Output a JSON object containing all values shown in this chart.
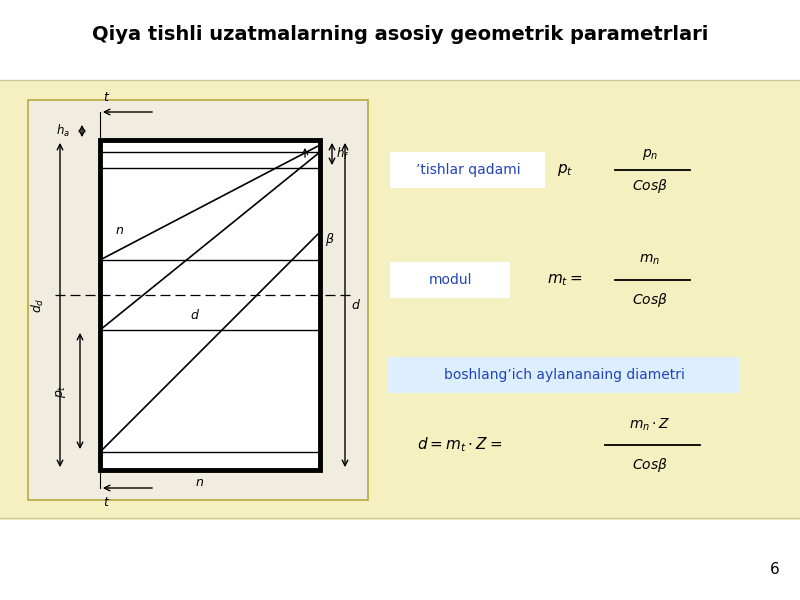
{
  "title": "Qiya tishli uzatmalarning asosiy geometrik parametrlari",
  "bg_color": "#f0eeee",
  "content_bg": "#f5f0c8",
  "diagram_panel_bg": "#f5f0c0",
  "diagram_inner_bg": "#f0ece0",
  "rect_bg": "#e8e4d8",
  "page_number": "6",
  "label1_text": "’tishlar qadami",
  "label1_color": "#2244bb",
  "label2_text": "modul",
  "label2_color": "#2244bb",
  "label3_text": "boshlang’ich aylananaing diametri",
  "label3_color": "#2244bb",
  "label_box_color": "#ffffff",
  "label3_box_color": "#ddeeff"
}
